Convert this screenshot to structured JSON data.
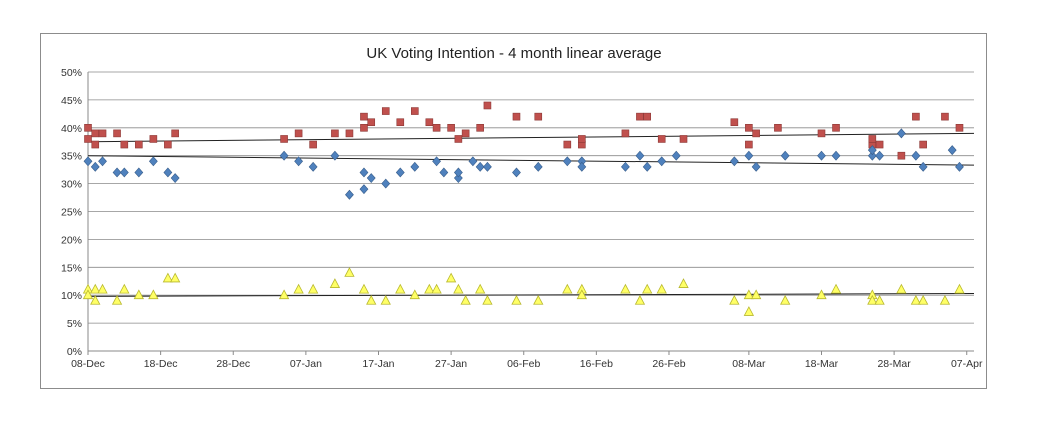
{
  "chart_data": {
    "type": "scatter",
    "title": "UK Voting Intention - 4 month linear average",
    "xlabel": "",
    "ylabel": "",
    "x_ticks": [
      "08-Dec",
      "18-Dec",
      "28-Dec",
      "07-Jan",
      "17-Jan",
      "27-Jan",
      "06-Feb",
      "16-Feb",
      "26-Feb",
      "08-Mar",
      "18-Mar",
      "28-Mar",
      "07-Apr"
    ],
    "y_ticks": [
      "0%",
      "5%",
      "10%",
      "15%",
      "20%",
      "25%",
      "30%",
      "35%",
      "40%",
      "45%",
      "50%"
    ],
    "ylim": [
      0,
      50
    ],
    "xlim": [
      "08-Dec",
      "08-Apr"
    ],
    "grid": "horizontal",
    "legend": "none",
    "series": [
      {
        "color": "#c0504d",
        "marker": "square",
        "trend": [
          37.5,
          39.0
        ],
        "points": [
          [
            "08-Dec",
            38
          ],
          [
            "08-Dec",
            40
          ],
          [
            "09-Dec",
            37
          ],
          [
            "09-Dec",
            39
          ],
          [
            "10-Dec",
            39
          ],
          [
            "12-Dec",
            39
          ],
          [
            "13-Dec",
            37
          ],
          [
            "15-Dec",
            37
          ],
          [
            "17-Dec",
            38
          ],
          [
            "19-Dec",
            37
          ],
          [
            "20-Dec",
            39
          ],
          [
            "04-Jan",
            38
          ],
          [
            "06-Jan",
            39
          ],
          [
            "08-Jan",
            37
          ],
          [
            "11-Jan",
            39
          ],
          [
            "13-Jan",
            39
          ],
          [
            "15-Jan",
            40
          ],
          [
            "15-Jan",
            42
          ],
          [
            "16-Jan",
            41
          ],
          [
            "18-Jan",
            43
          ],
          [
            "20-Jan",
            41
          ],
          [
            "22-Jan",
            43
          ],
          [
            "24-Jan",
            41
          ],
          [
            "25-Jan",
            40
          ],
          [
            "27-Jan",
            40
          ],
          [
            "28-Jan",
            38
          ],
          [
            "29-Jan",
            39
          ],
          [
            "31-Jan",
            40
          ],
          [
            "01-Feb",
            44
          ],
          [
            "05-Feb",
            42
          ],
          [
            "08-Feb",
            42
          ],
          [
            "12-Feb",
            37
          ],
          [
            "14-Feb",
            37
          ],
          [
            "14-Feb",
            38
          ],
          [
            "20-Feb",
            39
          ],
          [
            "22-Feb",
            42
          ],
          [
            "23-Feb",
            42
          ],
          [
            "25-Feb",
            38
          ],
          [
            "28-Feb",
            38
          ],
          [
            "06-Mar",
            41
          ],
          [
            "08-Mar",
            40
          ],
          [
            "08-Mar",
            37
          ],
          [
            "09-Mar",
            39
          ],
          [
            "12-Mar",
            40
          ],
          [
            "18-Mar",
            39
          ],
          [
            "20-Mar",
            40
          ],
          [
            "25-Mar",
            37
          ],
          [
            "25-Mar",
            38
          ],
          [
            "26-Mar",
            37
          ],
          [
            "29-Mar",
            35
          ],
          [
            "31-Mar",
            42
          ],
          [
            "01-Apr",
            37
          ],
          [
            "04-Apr",
            42
          ],
          [
            "06-Apr",
            40
          ]
        ]
      },
      {
        "color": "#4f81bd",
        "marker": "diamond",
        "trend": [
          35.0,
          33.3
        ],
        "points": [
          [
            "08-Dec",
            34
          ],
          [
            "09-Dec",
            33
          ],
          [
            "10-Dec",
            34
          ],
          [
            "12-Dec",
            32
          ],
          [
            "13-Dec",
            32
          ],
          [
            "15-Dec",
            32
          ],
          [
            "17-Dec",
            34
          ],
          [
            "19-Dec",
            32
          ],
          [
            "20-Dec",
            31
          ],
          [
            "04-Jan",
            35
          ],
          [
            "06-Jan",
            34
          ],
          [
            "08-Jan",
            33
          ],
          [
            "11-Jan",
            35
          ],
          [
            "13-Jan",
            28
          ],
          [
            "15-Jan",
            32
          ],
          [
            "15-Jan",
            29
          ],
          [
            "16-Jan",
            31
          ],
          [
            "18-Jan",
            30
          ],
          [
            "20-Jan",
            32
          ],
          [
            "22-Jan",
            33
          ],
          [
            "25-Jan",
            34
          ],
          [
            "26-Jan",
            32
          ],
          [
            "28-Jan",
            31
          ],
          [
            "28-Jan",
            32
          ],
          [
            "30-Jan",
            34
          ],
          [
            "31-Jan",
            33
          ],
          [
            "01-Feb",
            33
          ],
          [
            "05-Feb",
            32
          ],
          [
            "08-Feb",
            33
          ],
          [
            "12-Feb",
            34
          ],
          [
            "14-Feb",
            34
          ],
          [
            "14-Feb",
            33
          ],
          [
            "20-Feb",
            33
          ],
          [
            "22-Feb",
            35
          ],
          [
            "23-Feb",
            33
          ],
          [
            "25-Feb",
            34
          ],
          [
            "27-Feb",
            35
          ],
          [
            "06-Mar",
            34
          ],
          [
            "08-Mar",
            35
          ],
          [
            "09-Mar",
            33
          ],
          [
            "13-Mar",
            35
          ],
          [
            "18-Mar",
            35
          ],
          [
            "20-Mar",
            35
          ],
          [
            "25-Mar",
            35
          ],
          [
            "25-Mar",
            36
          ],
          [
            "26-Mar",
            35
          ],
          [
            "29-Mar",
            39
          ],
          [
            "31-Mar",
            35
          ],
          [
            "01-Apr",
            33
          ],
          [
            "05-Apr",
            36
          ],
          [
            "06-Apr",
            33
          ]
        ]
      },
      {
        "color": "#ffff66",
        "marker": "triangle",
        "trend": [
          9.8,
          10.3
        ],
        "points": [
          [
            "08-Dec",
            11
          ],
          [
            "08-Dec",
            10
          ],
          [
            "09-Dec",
            11
          ],
          [
            "09-Dec",
            9
          ],
          [
            "10-Dec",
            11
          ],
          [
            "12-Dec",
            9
          ],
          [
            "13-Dec",
            11
          ],
          [
            "15-Dec",
            10
          ],
          [
            "17-Dec",
            10
          ],
          [
            "19-Dec",
            13
          ],
          [
            "20-Dec",
            13
          ],
          [
            "04-Jan",
            10
          ],
          [
            "06-Jan",
            11
          ],
          [
            "08-Jan",
            11
          ],
          [
            "11-Jan",
            12
          ],
          [
            "13-Jan",
            14
          ],
          [
            "15-Jan",
            11
          ],
          [
            "16-Jan",
            9
          ],
          [
            "18-Jan",
            9
          ],
          [
            "20-Jan",
            11
          ],
          [
            "22-Jan",
            10
          ],
          [
            "24-Jan",
            11
          ],
          [
            "25-Jan",
            11
          ],
          [
            "27-Jan",
            13
          ],
          [
            "28-Jan",
            11
          ],
          [
            "29-Jan",
            9
          ],
          [
            "31-Jan",
            11
          ],
          [
            "01-Feb",
            9
          ],
          [
            "05-Feb",
            9
          ],
          [
            "08-Feb",
            9
          ],
          [
            "12-Feb",
            11
          ],
          [
            "14-Feb",
            11
          ],
          [
            "14-Feb",
            10
          ],
          [
            "20-Feb",
            11
          ],
          [
            "22-Feb",
            9
          ],
          [
            "23-Feb",
            11
          ],
          [
            "25-Feb",
            11
          ],
          [
            "28-Feb",
            12
          ],
          [
            "06-Mar",
            9
          ],
          [
            "08-Mar",
            7
          ],
          [
            "08-Mar",
            10
          ],
          [
            "09-Mar",
            10
          ],
          [
            "13-Mar",
            9
          ],
          [
            "18-Mar",
            10
          ],
          [
            "20-Mar",
            11
          ],
          [
            "25-Mar",
            10
          ],
          [
            "25-Mar",
            9
          ],
          [
            "26-Mar",
            9
          ],
          [
            "29-Mar",
            11
          ],
          [
            "31-Mar",
            9
          ],
          [
            "01-Apr",
            9
          ],
          [
            "04-Apr",
            9
          ],
          [
            "06-Apr",
            11
          ]
        ]
      }
    ]
  }
}
